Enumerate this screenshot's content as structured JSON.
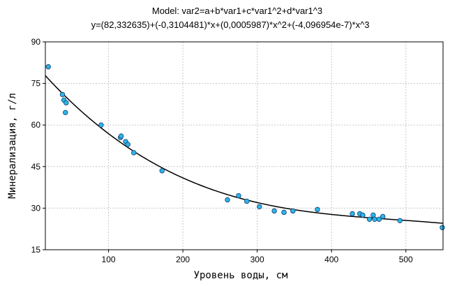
{
  "chart_data": {
    "type": "scatter",
    "title": "Model: var2=a+b*var1+c*var1^2+d*var1^3",
    "subtitle": "y=(82,332635)+(-0,3104481)*x+(0,0005987)*x^2+(-4,096954e-7)*x^3",
    "xlabel": "Уровень воды, см",
    "ylabel": "Минерализация, г/л",
    "xlim": [
      15,
      550
    ],
    "ylim": [
      15,
      90
    ],
    "x_ticks": [
      100,
      200,
      300,
      400,
      500
    ],
    "y_ticks": [
      15,
      30,
      45,
      60,
      75,
      90
    ],
    "grid": true,
    "fit_coefficients": {
      "a": 82.332635,
      "b": -0.3104481,
      "c": 0.0005987,
      "d": -4.096954e-07
    },
    "points": [
      {
        "x": 19,
        "y": 81
      },
      {
        "x": 38,
        "y": 71
      },
      {
        "x": 40,
        "y": 69
      },
      {
        "x": 42,
        "y": 64.5
      },
      {
        "x": 43,
        "y": 68
      },
      {
        "x": 90,
        "y": 60
      },
      {
        "x": 116,
        "y": 55.5
      },
      {
        "x": 117,
        "y": 56
      },
      {
        "x": 123,
        "y": 54
      },
      {
        "x": 126,
        "y": 53
      },
      {
        "x": 134,
        "y": 50
      },
      {
        "x": 172,
        "y": 43.5
      },
      {
        "x": 260,
        "y": 33
      },
      {
        "x": 275,
        "y": 34.5
      },
      {
        "x": 286,
        "y": 32.5
      },
      {
        "x": 303,
        "y": 30.5
      },
      {
        "x": 323,
        "y": 29
      },
      {
        "x": 336,
        "y": 28.5
      },
      {
        "x": 348,
        "y": 29
      },
      {
        "x": 381,
        "y": 29.5
      },
      {
        "x": 428,
        "y": 28
      },
      {
        "x": 438,
        "y": 28
      },
      {
        "x": 442,
        "y": 27.5
      },
      {
        "x": 451,
        "y": 26
      },
      {
        "x": 456,
        "y": 27.5
      },
      {
        "x": 458,
        "y": 26
      },
      {
        "x": 464,
        "y": 26
      },
      {
        "x": 469,
        "y": 27
      },
      {
        "x": 492,
        "y": 25.5
      },
      {
        "x": 549,
        "y": 23
      }
    ],
    "colors": {
      "point_fill": "#29b6e6",
      "point_stroke": "#1a3a6e",
      "fit_line": "#000000",
      "grid": "#c8c8c8"
    }
  }
}
